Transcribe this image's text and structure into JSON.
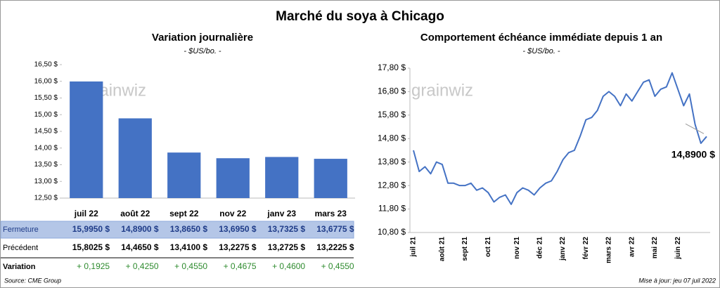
{
  "title": "Marché du soya à Chicago",
  "source": "Source: CME Group",
  "updated": "Mise à jour: jeu 07 juil 2022",
  "watermark": "grainwiz",
  "chart_data": [
    {
      "type": "bar",
      "title": "Variation journalière",
      "subtitle": "- $US/bo. -",
      "categories": [
        "juil 22",
        "août 22",
        "sept 22",
        "nov 22",
        "janv 23",
        "mars 23"
      ],
      "values": [
        15.995,
        14.89,
        13.865,
        13.695,
        13.7325,
        13.6775
      ],
      "color": "#4472c4",
      "grid": false,
      "ylim": [
        12.5,
        16.5
      ],
      "yticks": [
        {
          "value": 12.5,
          "label": "12,50 $"
        },
        {
          "value": 13,
          "label": "13,00 $"
        },
        {
          "value": 13.5,
          "label": "13,50 $"
        },
        {
          "value": 14,
          "label": "14,00 $"
        },
        {
          "value": 14.5,
          "label": "14,50 $"
        },
        {
          "value": 15,
          "label": "15,00 $"
        },
        {
          "value": 15.5,
          "label": "15,50 $"
        },
        {
          "value": 16,
          "label": "16,00 $"
        },
        {
          "value": 16.5,
          "label": "16,50 $"
        }
      ]
    },
    {
      "type": "line",
      "title": "Comportement  échéance immédiate depuis 1 an",
      "subtitle": "- $US/bo. -",
      "categories": [
        "juil 21",
        null,
        null,
        null,
        null,
        "août 21",
        null,
        null,
        null,
        "sept 21",
        null,
        null,
        null,
        "oct 21",
        null,
        null,
        null,
        null,
        "nov 21",
        null,
        null,
        null,
        "déc 21",
        null,
        null,
        null,
        "janv 22",
        null,
        null,
        null,
        "févr 22",
        null,
        null,
        null,
        "mars 22",
        null,
        null,
        null,
        "avr 22",
        null,
        null,
        null,
        "mai 22",
        null,
        null,
        null,
        "juin 22",
        null,
        null,
        null,
        null,
        null
      ],
      "values": [
        14.3,
        13.4,
        13.6,
        13.3,
        13.8,
        13.7,
        12.9,
        12.9,
        12.8,
        12.8,
        12.9,
        12.6,
        12.7,
        12.5,
        12.1,
        12.3,
        12.4,
        12.0,
        12.5,
        12.7,
        12.6,
        12.4,
        12.7,
        12.9,
        13.0,
        13.4,
        13.9,
        14.2,
        14.3,
        14.9,
        15.6,
        15.7,
        16.0,
        16.6,
        16.8,
        16.6,
        16.2,
        16.7,
        16.4,
        16.8,
        17.2,
        17.3,
        16.6,
        16.9,
        17.0,
        17.6,
        16.9,
        16.2,
        16.7,
        15.4,
        14.6,
        14.89
      ],
      "color": "#4472c4",
      "grid": false,
      "annotation": "14,8900 $",
      "ylim": [
        10.8,
        17.8
      ],
      "yticks": [
        {
          "value": 10.8,
          "label": "10,80 $"
        },
        {
          "value": 11.8,
          "label": "11,80 $"
        },
        {
          "value": 12.8,
          "label": "12,80 $"
        },
        {
          "value": 13.8,
          "label": "13,80 $"
        },
        {
          "value": 14.8,
          "label": "14,80 $"
        },
        {
          "value": 15.8,
          "label": "15,80 $"
        },
        {
          "value": 16.8,
          "label": "16,80 $"
        },
        {
          "value": 17.8,
          "label": "17,80 $"
        }
      ]
    }
  ],
  "table": {
    "rows": [
      {
        "label": "Fermeture",
        "values": [
          "15,9950 $",
          "14,8900 $",
          "13,8650 $",
          "13,6950 $",
          "13,7325 $",
          "13,6775 $"
        ]
      },
      {
        "label": "Précédent",
        "values": [
          "15,8025 $",
          "14,4650 $",
          "13,4100 $",
          "13,2275 $",
          "13,2725 $",
          "13,2225 $"
        ]
      },
      {
        "label": "Variation",
        "values": [
          "+ 0,1925",
          "+ 0,4250",
          "+ 0,4550",
          "+ 0,4675",
          "+ 0,4600",
          "+ 0,4550"
        ]
      }
    ]
  }
}
